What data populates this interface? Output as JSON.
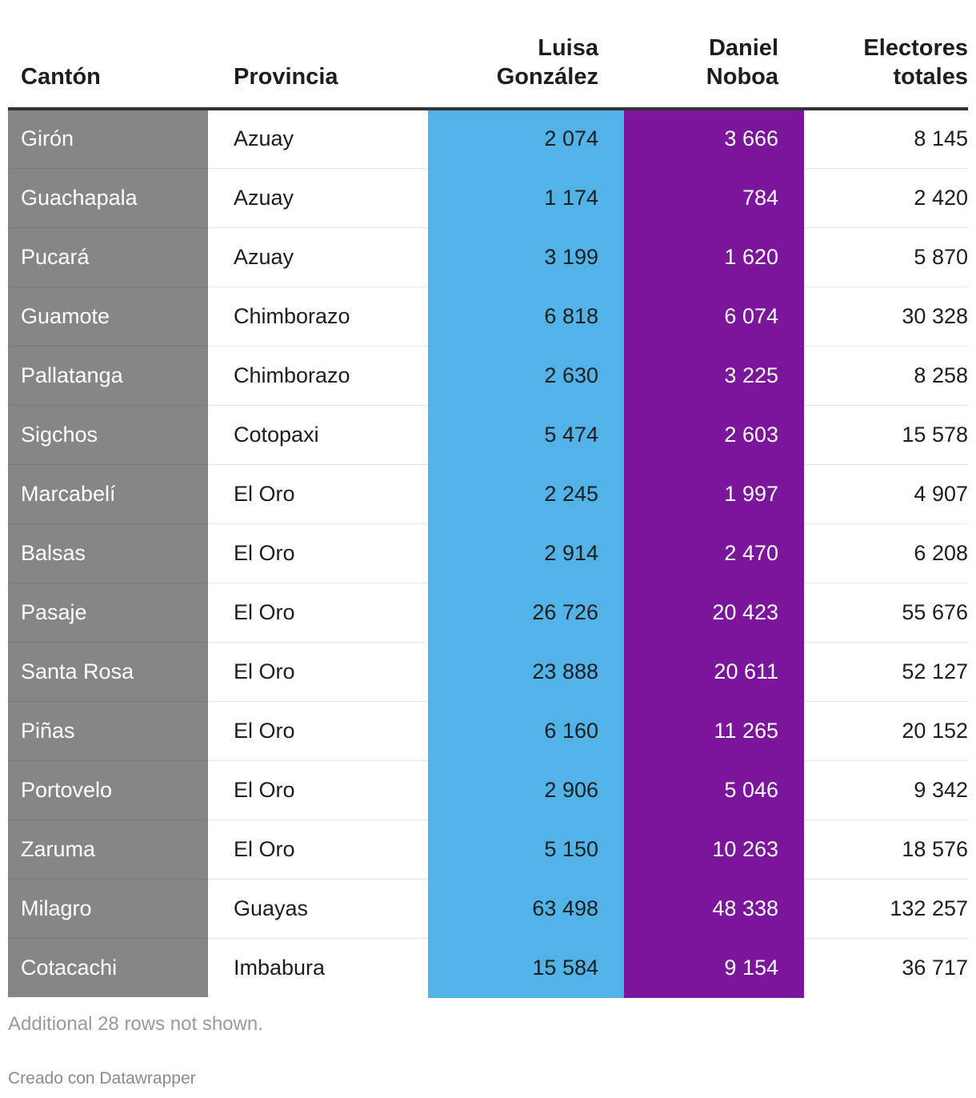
{
  "chart_data": {
    "type": "table",
    "columns": [
      "Cantón",
      "Provincia",
      "Luisa González",
      "Daniel Noboa",
      "Electores totales"
    ],
    "header_lines": [
      [
        "Cantón"
      ],
      [
        "Provincia"
      ],
      [
        "Luisa",
        "González"
      ],
      [
        "Daniel",
        "Noboa"
      ],
      [
        "Electores",
        "totales"
      ]
    ],
    "rows": [
      [
        "Girón",
        "Azuay",
        "2 074",
        "3 666",
        "8 145"
      ],
      [
        "Guachapala",
        "Azuay",
        "1 174",
        "784",
        "2 420"
      ],
      [
        "Pucará",
        "Azuay",
        "3 199",
        "1 620",
        "5 870"
      ],
      [
        "Guamote",
        "Chimborazo",
        "6 818",
        "6 074",
        "30 328"
      ],
      [
        "Pallatanga",
        "Chimborazo",
        "2 630",
        "3 225",
        "8 258"
      ],
      [
        "Sigchos",
        "Cotopaxi",
        "5 474",
        "2 603",
        "15 578"
      ],
      [
        "Marcabelí",
        "El Oro",
        "2 245",
        "1 997",
        "4 907"
      ],
      [
        "Balsas",
        "El Oro",
        "2 914",
        "2 470",
        "6 208"
      ],
      [
        "Pasaje",
        "El Oro",
        "26 726",
        "20 423",
        "55 676"
      ],
      [
        "Santa Rosa",
        "El Oro",
        "23 888",
        "20 611",
        "52 127"
      ],
      [
        "Piñas",
        "El Oro",
        "6 160",
        "11 265",
        "20 152"
      ],
      [
        "Portovelo",
        "El Oro",
        "2 906",
        "5 046",
        "9 342"
      ],
      [
        "Zaruma",
        "El Oro",
        "5 150",
        "10 263",
        "18 576"
      ],
      [
        "Milagro",
        "Guayas",
        "63 498",
        "48 338",
        "132 257"
      ],
      [
        "Cotacachi",
        "Imbabura",
        "15 584",
        "9 154",
        "36 717"
      ]
    ],
    "colors": {
      "canton": "#868686",
      "luisa_gonzalez": "#52b3e8",
      "daniel_noboa": "#7a159c"
    }
  },
  "footer": {
    "note": "Additional 28 rows not shown.",
    "credit": "Creado con Datawrapper"
  }
}
